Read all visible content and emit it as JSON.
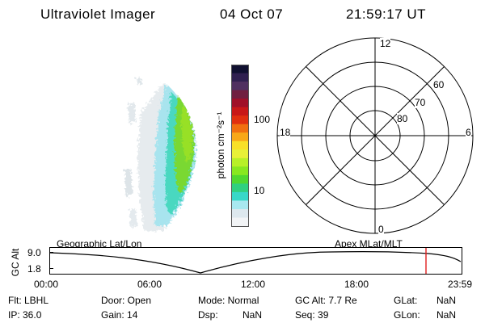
{
  "header": {
    "instrument": "Ultraviolet Imager",
    "date": "04 Oct 07",
    "time": "21:59:17 UT"
  },
  "colorbar": {
    "unit_label": "photon cm⁻²s⁻¹",
    "ticks": [
      "100",
      "10"
    ],
    "colors": [
      "#101030",
      "#302050",
      "#503060",
      "#702040",
      "#a01028",
      "#c81818",
      "#e03010",
      "#f07010",
      "#f8a818",
      "#f8e028",
      "#e8f038",
      "#b8f028",
      "#88e820",
      "#50d830",
      "#30d080",
      "#38d8c8",
      "#a8e8f0",
      "#dde8ee",
      "#f2f4f6"
    ]
  },
  "polar": {
    "clock_labels": {
      "top": "12",
      "left": "18",
      "right": "6",
      "bottom": "0"
    },
    "lat_labels": [
      "60",
      "70",
      "80"
    ]
  },
  "timeline": {
    "y_axis_label": "GC Alt",
    "y_max": "9.0",
    "y_min": "1.8",
    "left_caption": "Geographic Lat/Lon",
    "right_caption": "Apex MLat/MLT",
    "x_ticks": [
      "00:00",
      "06:00",
      "12:00",
      "18:00",
      "23:59"
    ],
    "marker_time": "21:59",
    "marker_color": "#e02020"
  },
  "status": {
    "flt": "Flt: LBHL",
    "ip": "IP: 36.0",
    "door": "Door: Open",
    "gain": "Gain: 14",
    "mode": "Mode: Normal",
    "dsp_label": "Dsp:",
    "dsp_value": "NaN",
    "gcalt": "GC Alt: 7.7 Re",
    "seq": "Seq: 39",
    "glat_label": "GLat:",
    "glat_value": "NaN",
    "glon_label": "GLon:",
    "glon_value": "NaN"
  }
}
